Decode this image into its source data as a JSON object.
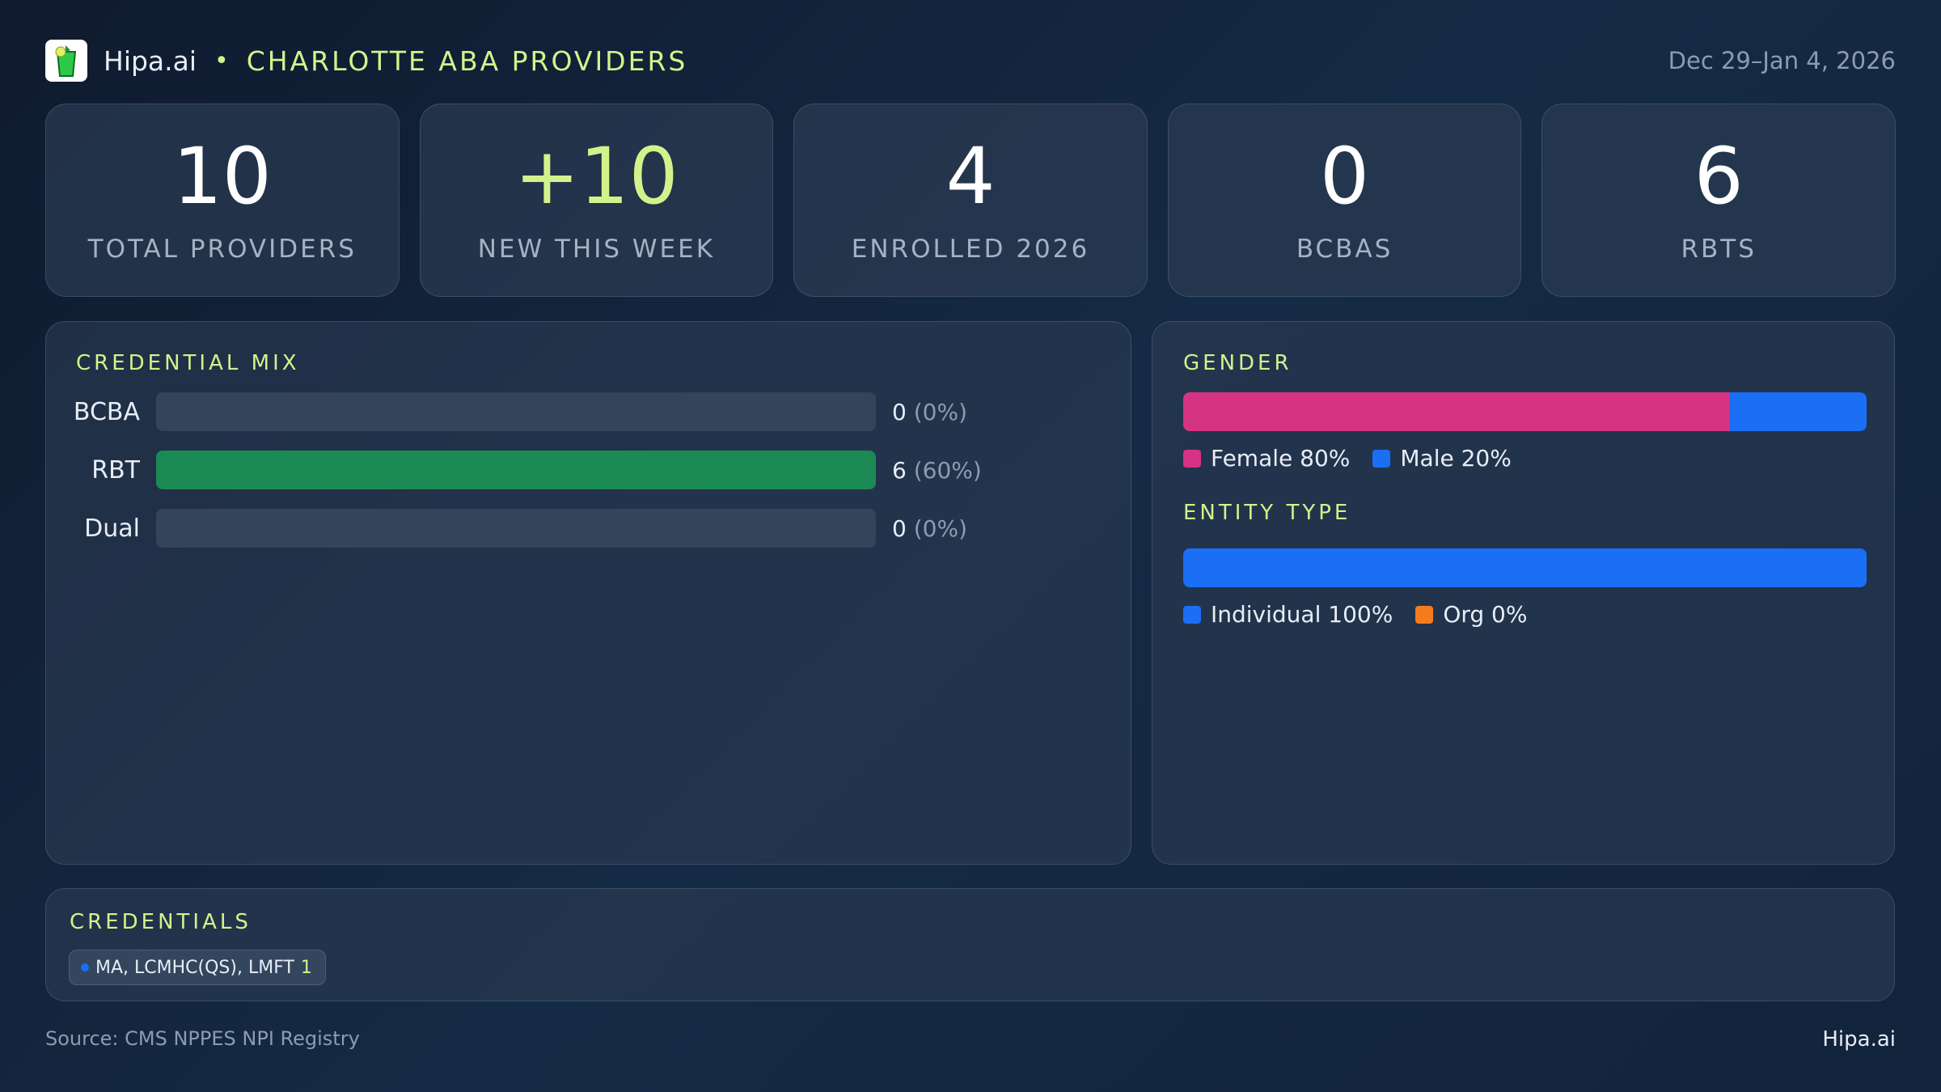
{
  "header": {
    "brand": "Hipa.ai",
    "separator": "•",
    "title": "CHARLOTTE ABA PROVIDERS",
    "date_range": "Dec 29–Jan 4, 2026"
  },
  "stats": [
    {
      "value": "10",
      "label": "TOTAL PROVIDERS"
    },
    {
      "value": "+10",
      "label": "NEW THIS WEEK"
    },
    {
      "value": "4",
      "label": "ENROLLED 2026"
    },
    {
      "value": "0",
      "label": "BCBAS"
    },
    {
      "value": "6",
      "label": "RBTS"
    }
  ],
  "credential_mix": {
    "title": "CREDENTIAL MIX",
    "rows": [
      {
        "label": "BCBA",
        "count": "0",
        "pct_text": "(0%)",
        "fraction": 0
      },
      {
        "label": "RBT",
        "count": "6",
        "pct_text": "(60%)",
        "fraction": 1
      },
      {
        "label": "Dual",
        "count": "0",
        "pct_text": "(0%)",
        "fraction": 0
      }
    ]
  },
  "gender": {
    "title": "GENDER",
    "segments": [
      {
        "label": "Female 80%",
        "percent": 80,
        "color": "#d63384"
      },
      {
        "label": "Male 20%",
        "percent": 20,
        "color": "#1a6ff5"
      }
    ]
  },
  "entity": {
    "title": "ENTITY TYPE",
    "segments": [
      {
        "label": "Individual 100%",
        "percent": 100,
        "color": "#1a6ff5"
      },
      {
        "label": "Org 0%",
        "percent": 0,
        "color": "#f57c1a"
      }
    ]
  },
  "credentials": {
    "title": "CREDENTIALS",
    "chips": [
      {
        "label": "MA, LCMHC(QS), LMFT",
        "count": "1"
      }
    ]
  },
  "footer": {
    "source": "Source: CMS NPPES NPI Registry",
    "brand": "Hipa.ai"
  }
}
